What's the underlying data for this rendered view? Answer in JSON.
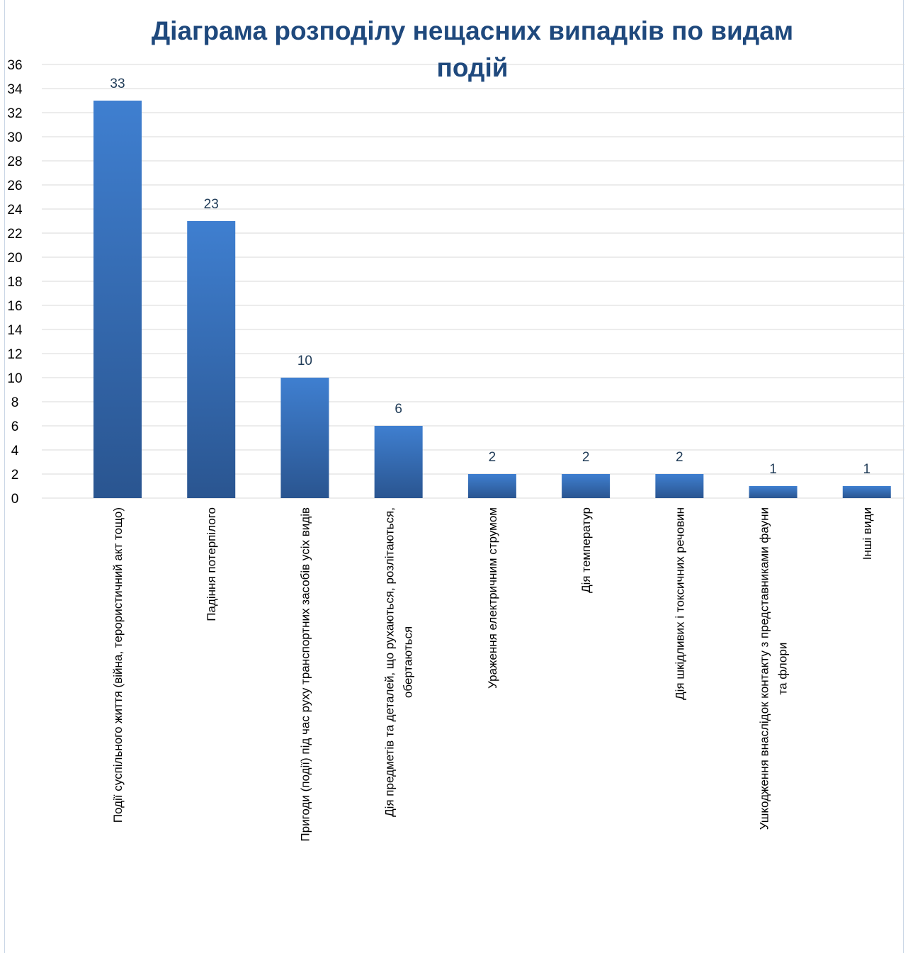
{
  "chart_data": {
    "type": "bar",
    "title_lines": [
      "Діаграма розподілу нещасних випадків по видам",
      "подій"
    ],
    "xlabel": "",
    "ylabel": "",
    "ylim": [
      0,
      36
    ],
    "yticks": [
      0,
      2,
      4,
      6,
      8,
      10,
      12,
      14,
      16,
      18,
      20,
      22,
      24,
      26,
      28,
      30,
      32,
      34,
      36
    ],
    "grid": true,
    "legend": "none",
    "categories": [
      [
        "Події суспільного життя (війна, терористичний акт тощо)"
      ],
      [
        "Падіння потерпілого"
      ],
      [
        "Пригоди (події) під час руху транспортних засобів усіх видів"
      ],
      [
        "Дія предметів та деталей, що рухаються, розлітаються,",
        "обертаються"
      ],
      [
        "Ураження електричним струмом"
      ],
      [
        "Дія температур"
      ],
      [
        "Дія шкідливих і токсичних речовин"
      ],
      [
        "Ушкодження внаслідок контакту з представниками фауни",
        "та флори"
      ],
      [
        "Інші види"
      ]
    ],
    "values": [
      33,
      23,
      10,
      6,
      2,
      2,
      2,
      1,
      1
    ],
    "colors": {
      "bar_top": "#3f7fd0",
      "bar_bottom": "#2a5590",
      "title": "#1f497d",
      "data_label": "#1f3b57"
    }
  }
}
